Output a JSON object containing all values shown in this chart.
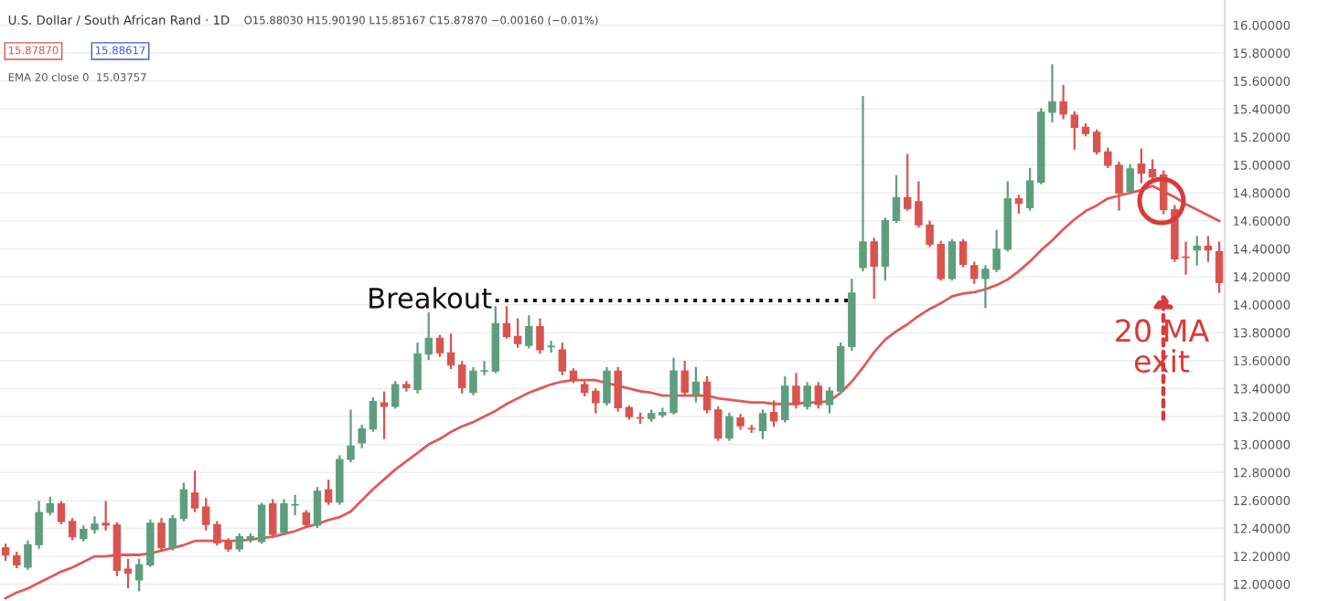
{
  "chart_data": {
    "type": "candlestick",
    "title": "U.S. Dollar / South African Rand · 1D",
    "subtitle": "O15.88030 H15.90190 L15.85167 C15.87870 −0.00160 (−0.01%)",
    "annotations": [
      "15.87870",
      "15.88617",
      "EMA 20 close 0  15.03757",
      "20 MA\nexit"
    ],
    "categories": [
      null,
      null,
      null,
      null,
      null,
      null,
      null,
      null,
      null,
      null,
      null,
      null,
      null,
      null,
      null,
      null,
      null,
      null,
      null,
      null,
      null,
      null,
      null,
      null,
      null,
      null,
      null,
      null,
      null,
      null,
      null,
      null,
      null,
      null,
      null,
      null,
      null,
      null,
      null,
      null,
      null,
      null,
      null,
      null,
      null,
      null,
      null,
      null,
      null,
      null,
      null,
      null,
      null,
      null,
      null,
      null,
      null,
      null,
      null,
      null,
      null,
      null,
      null,
      null,
      null,
      null,
      null,
      null,
      null,
      null,
      null,
      null,
      null,
      null,
      null,
      null,
      null,
      null,
      null,
      null,
      null,
      null,
      null,
      null,
      null,
      null,
      null,
      null,
      null,
      null,
      null,
      null,
      null,
      null,
      null,
      null,
      null,
      null,
      null,
      null,
      null,
      null,
      null,
      null,
      null,
      null,
      null,
      null,
      null,
      null
    ],
    "ylim": [
      11.88,
      16.18
    ],
    "yticks": [
      {
        "value": 12.0,
        "label": "12.00000"
      },
      {
        "value": 12.2,
        "label": "12.20000"
      },
      {
        "value": 12.4,
        "label": "12.40000"
      },
      {
        "value": 12.6,
        "label": "12.60000"
      },
      {
        "value": 12.8,
        "label": "12.80000"
      },
      {
        "value": 13.0,
        "label": "13.00000"
      },
      {
        "value": 13.2,
        "label": "13.20000"
      },
      {
        "value": 13.4,
        "label": "13.40000"
      },
      {
        "value": 13.6,
        "label": "13.60000"
      },
      {
        "value": 13.8,
        "label": "13.80000"
      },
      {
        "value": 14.0,
        "label": "14.00000"
      },
      {
        "value": 14.2,
        "label": "14.20000"
      },
      {
        "value": 14.4,
        "label": "14.40000"
      },
      {
        "value": 14.6,
        "label": "14.60000"
      },
      {
        "value": 14.8,
        "label": "14.80000"
      },
      {
        "value": 15.0,
        "label": "15.00000"
      },
      {
        "value": 15.2,
        "label": "15.20000"
      },
      {
        "value": 15.4,
        "label": "15.40000"
      },
      {
        "value": 15.6,
        "label": "15.60000"
      },
      {
        "value": 15.8,
        "label": "15.80000"
      },
      {
        "value": 16.0,
        "label": "16.00000"
      }
    ],
    "tick_labels": "y",
    "grid": "y",
    "series": [
      {
        "ohlc": [
          [
            12.261,
            12.283,
            12.174,
            12.209
          ],
          [
            12.205,
            12.226,
            12.122,
            12.139
          ],
          [
            12.122,
            12.305,
            12.109,
            12.283
          ],
          [
            12.283,
            12.588,
            12.261,
            12.514
          ],
          [
            12.514,
            12.619,
            12.501,
            12.575
          ],
          [
            12.575,
            12.588,
            12.436,
            12.449
          ],
          [
            12.449,
            12.466,
            12.322,
            12.34
          ],
          [
            12.327,
            12.414,
            12.314,
            12.392
          ],
          [
            12.392,
            12.479,
            12.37,
            12.431
          ],
          [
            12.436,
            12.588,
            12.392,
            12.423
          ],
          [
            12.423,
            12.436,
            12.065,
            12.1
          ],
          [
            12.109,
            12.174,
            11.978,
            12.078
          ],
          [
            12.03,
            12.174,
            11.956,
            12.139
          ],
          [
            12.139,
            12.457,
            12.131,
            12.436
          ],
          [
            12.436,
            12.466,
            12.239,
            12.261
          ],
          [
            12.261,
            12.488,
            12.248,
            12.47
          ],
          [
            12.47,
            12.719,
            12.457,
            12.675
          ],
          [
            12.653,
            12.806,
            12.523,
            12.545
          ],
          [
            12.553,
            12.61,
            12.392,
            12.427
          ],
          [
            12.427,
            12.444,
            12.283,
            12.296
          ],
          [
            12.305,
            12.322,
            12.239,
            12.253
          ],
          [
            12.253,
            12.357,
            12.239,
            12.34
          ],
          [
            12.318,
            12.357,
            12.305,
            12.34
          ],
          [
            12.305,
            12.575,
            12.296,
            12.566
          ],
          [
            12.575,
            12.601,
            12.34,
            12.357
          ],
          [
            12.37,
            12.601,
            12.357,
            12.575
          ],
          [
            12.566,
            12.632,
            12.501,
            12.568
          ],
          [
            12.51,
            12.523,
            12.414,
            12.427
          ],
          [
            12.423,
            12.688,
            12.41,
            12.666
          ],
          [
            12.675,
            12.741,
            12.575,
            12.588
          ],
          [
            12.588,
            12.915,
            12.575,
            12.893
          ],
          [
            12.893,
            13.242,
            12.88,
            12.989
          ],
          [
            13.011,
            13.133,
            12.98,
            13.111
          ],
          [
            13.111,
            13.329,
            13.098,
            13.307
          ],
          [
            13.298,
            13.372,
            13.046,
            13.272
          ],
          [
            13.272,
            13.446,
            13.263,
            13.429
          ],
          [
            13.429,
            13.446,
            13.385,
            13.407
          ],
          [
            13.394,
            13.721,
            13.372,
            13.647
          ],
          [
            13.647,
            13.939,
            13.612,
            13.76
          ],
          [
            13.76,
            13.778,
            13.634,
            13.656
          ],
          [
            13.656,
            13.786,
            13.547,
            13.568
          ],
          [
            13.568,
            13.59,
            13.372,
            13.407
          ],
          [
            13.372,
            13.547,
            13.359,
            13.525
          ],
          [
            13.523,
            13.59,
            13.503,
            13.527
          ],
          [
            13.525,
            13.982,
            13.516,
            13.865
          ],
          [
            13.865,
            13.982,
            13.765,
            13.773
          ],
          [
            13.773,
            13.895,
            13.699,
            13.721
          ],
          [
            13.708,
            13.917,
            13.695,
            13.843
          ],
          [
            13.843,
            13.895,
            13.656,
            13.677
          ],
          [
            13.699,
            13.734,
            13.664,
            13.701
          ],
          [
            13.677,
            13.721,
            13.503,
            13.525
          ],
          [
            13.525,
            13.538,
            13.446,
            13.46
          ],
          [
            13.429,
            13.446,
            13.351,
            13.372
          ],
          [
            13.381,
            13.394,
            13.229,
            13.298
          ],
          [
            13.298,
            13.547,
            13.285,
            13.525
          ],
          [
            13.525,
            13.547,
            13.242,
            13.263
          ],
          [
            13.263,
            13.272,
            13.185,
            13.198
          ],
          [
            13.192,
            13.221,
            13.155,
            13.188
          ],
          [
            13.186,
            13.243,
            13.168,
            13.221
          ],
          [
            13.212,
            13.256,
            13.199,
            13.229
          ],
          [
            13.229,
            13.613,
            13.221,
            13.526
          ],
          [
            13.526,
            13.591,
            13.351,
            13.373
          ],
          [
            13.36,
            13.547,
            13.308,
            13.447
          ],
          [
            13.447,
            13.482,
            13.229,
            13.247
          ],
          [
            13.247,
            13.264,
            13.033,
            13.046
          ],
          [
            13.046,
            13.221,
            13.033,
            13.199
          ],
          [
            13.19,
            13.212,
            13.112,
            13.133
          ],
          [
            13.113,
            13.133,
            13.09,
            13.111
          ],
          [
            13.099,
            13.243,
            13.046,
            13.221
          ],
          [
            13.229,
            13.308,
            13.133,
            13.168
          ],
          [
            13.177,
            13.482,
            13.164,
            13.417
          ],
          [
            13.417,
            13.504,
            13.264,
            13.286
          ],
          [
            13.273,
            13.439,
            13.256,
            13.417
          ],
          [
            13.417,
            13.439,
            13.264,
            13.286
          ],
          [
            13.286,
            13.404,
            13.229,
            13.382
          ],
          [
            13.382,
            13.722,
            13.369,
            13.7
          ],
          [
            13.7,
            14.179,
            13.678,
            14.083
          ],
          [
            14.266,
            15.486,
            14.245,
            14.449
          ],
          [
            14.449,
            14.471,
            14.049,
            14.275
          ],
          [
            14.275,
            14.615,
            14.179,
            14.602
          ],
          [
            14.602,
            14.92,
            14.593,
            14.767
          ],
          [
            14.767,
            15.072,
            14.68,
            14.689
          ],
          [
            14.737,
            14.876,
            14.558,
            14.571
          ],
          [
            14.571,
            14.593,
            14.419,
            14.432
          ],
          [
            14.432,
            14.449,
            14.179,
            14.188
          ],
          [
            14.188,
            14.462,
            14.179,
            14.449
          ],
          [
            14.449,
            14.462,
            14.275,
            14.288
          ],
          [
            14.279,
            14.301,
            14.157,
            14.188
          ],
          [
            14.188,
            14.275,
            13.983,
            14.253
          ],
          [
            14.253,
            14.528,
            14.24,
            14.397
          ],
          [
            14.397,
            14.876,
            14.388,
            14.759
          ],
          [
            14.759,
            14.78,
            14.658,
            14.724
          ],
          [
            14.693,
            14.972,
            14.68,
            14.885
          ],
          [
            14.876,
            15.399,
            14.868,
            15.377
          ],
          [
            15.377,
            15.713,
            15.312,
            15.451
          ],
          [
            15.451,
            15.565,
            15.334,
            15.364
          ],
          [
            15.356,
            15.377,
            15.116,
            15.269
          ],
          [
            15.269,
            15.29,
            15.212,
            15.225
          ],
          [
            15.234,
            15.247,
            15.081,
            15.094
          ],
          [
            15.094,
            15.116,
            14.985,
            14.998
          ],
          [
            14.998,
            15.016,
            14.68,
            14.798
          ],
          [
            14.811,
            14.998,
            14.798,
            14.972
          ],
          [
            15.007,
            15.111,
            14.876,
            14.941
          ],
          [
            14.967,
            15.033,
            14.876,
            14.915
          ],
          [
            14.928,
            14.954,
            14.654,
            14.68
          ],
          [
            14.68,
            14.706,
            14.314,
            14.327
          ],
          [
            14.342,
            14.444,
            14.222,
            14.338
          ],
          [
            14.392,
            14.484,
            14.288,
            14.418
          ],
          [
            14.418,
            14.484,
            14.314,
            14.392
          ],
          [
            14.379,
            14.444,
            14.091,
            14.157
          ]
        ],
        "colors": [
          "#d9534f",
          "#d9534f",
          "#5d9e7e",
          "#5d9e7e",
          "#5d9e7e",
          "#d9534f",
          "#d9534f",
          "#5d9e7e",
          "#5d9e7e",
          "#d9534f",
          "#d9534f",
          "#d9534f",
          "#5d9e7e",
          "#5d9e7e",
          "#d9534f",
          "#5d9e7e",
          "#5d9e7e",
          "#d9534f",
          "#d9534f",
          "#d9534f",
          "#d9534f",
          "#5d9e7e",
          "#5d9e7e",
          "#5d9e7e",
          "#d9534f",
          "#5d9e7e",
          "#5d9e7e",
          "#d9534f",
          "#5d9e7e",
          "#d9534f",
          "#5d9e7e",
          "#5d9e7e",
          "#5d9e7e",
          "#5d9e7e",
          "#d9534f",
          "#5d9e7e",
          "#d9534f",
          "#5d9e7e",
          "#5d9e7e",
          "#d9534f",
          "#d9534f",
          "#d9534f",
          "#5d9e7e",
          "#5d9e7e",
          "#5d9e7e",
          "#d9534f",
          "#d9534f",
          "#5d9e7e",
          "#d9534f",
          "#5d9e7e",
          "#d9534f",
          "#d9534f",
          "#d9534f",
          "#d9534f",
          "#5d9e7e",
          "#d9534f",
          "#d9534f",
          "#d9534f",
          "#5d9e7e",
          "#5d9e7e",
          "#5d9e7e",
          "#d9534f",
          "#5d9e7e",
          "#d9534f",
          "#d9534f",
          "#5d9e7e",
          "#d9534f",
          "#d9534f",
          "#5d9e7e",
          "#d9534f",
          "#5d9e7e",
          "#d9534f",
          "#5d9e7e",
          "#d9534f",
          "#5d9e7e",
          "#5d9e7e",
          "#5d9e7e",
          "#5d9e7e",
          "#d9534f",
          "#5d9e7e",
          "#5d9e7e",
          "#d9534f",
          "#d9534f",
          "#d9534f",
          "#d9534f",
          "#5d9e7e",
          "#d9534f",
          "#d9534f",
          "#5d9e7e",
          "#5d9e7e",
          "#5d9e7e",
          "#d9534f",
          "#5d9e7e",
          "#5d9e7e",
          "#5d9e7e",
          "#d9534f",
          "#d9534f",
          "#d9534f",
          "#d9534f",
          "#d9534f",
          "#d9534f",
          "#5d9e7e",
          "#d9534f",
          "#d9534f",
          "#d9534f",
          "#d9534f",
          "#d9534f",
          "#5d9e7e",
          "#d9534f",
          "#d9534f"
        ]
      },
      {
        "type": "line",
        "color": "#e05a5a",
        "line_style": "solid",
        "values": [
          11.9,
          11.94,
          11.97,
          12.01,
          12.05,
          12.09,
          12.12,
          12.16,
          12.2,
          12.2,
          12.21,
          12.21,
          12.21,
          12.22,
          12.24,
          12.26,
          12.28,
          12.31,
          12.31,
          12.31,
          12.31,
          12.31,
          12.32,
          12.33,
          12.34,
          12.36,
          12.38,
          12.41,
          12.43,
          12.46,
          12.48,
          12.52,
          12.6,
          12.68,
          12.75,
          12.82,
          12.88,
          12.94,
          13.0,
          13.04,
          13.09,
          13.13,
          13.16,
          13.2,
          13.24,
          13.29,
          13.33,
          13.37,
          13.4,
          13.43,
          13.45,
          13.46,
          13.46,
          13.46,
          13.44,
          13.42,
          13.4,
          13.38,
          13.37,
          13.35,
          13.35,
          13.35,
          13.35,
          13.35,
          13.33,
          13.32,
          13.31,
          13.3,
          13.3,
          13.29,
          13.29,
          13.29,
          13.3,
          13.3,
          13.31,
          13.37,
          13.45,
          13.55,
          13.66,
          13.75,
          13.81,
          13.86,
          13.92,
          13.97,
          14.01,
          14.06,
          14.08,
          14.09,
          14.11,
          14.14,
          14.18,
          14.24,
          14.31,
          14.39,
          14.46,
          14.54,
          14.61,
          14.67,
          14.71,
          14.76,
          14.78,
          14.8,
          14.82,
          14.85,
          14.81,
          14.77,
          14.72,
          14.68,
          14.64,
          14.6
        ]
      },
      {
        "type": "line",
        "name": "Breakout",
        "color": "#111111",
        "line_style": "dotted",
        "values": [
          null,
          null,
          null,
          null,
          null,
          null,
          null,
          null,
          null,
          null,
          null,
          null,
          null,
          null,
          null,
          null,
          null,
          null,
          null,
          null,
          null,
          null,
          null,
          null,
          null,
          null,
          null,
          null,
          null,
          null,
          null,
          null,
          null,
          null,
          null,
          null,
          null,
          null,
          null,
          null,
          null,
          null,
          null,
          null,
          14.03,
          14.03,
          14.03,
          14.03,
          14.03,
          14.03,
          14.03,
          14.03,
          14.03,
          14.03,
          14.03,
          14.03,
          14.03,
          14.03,
          14.03,
          14.03,
          14.03,
          14.03,
          14.03,
          14.03,
          14.03,
          14.03,
          14.03,
          14.03,
          14.03,
          14.03,
          14.03,
          14.03,
          14.03,
          14.03,
          14.03,
          14.03,
          14.03,
          null,
          null,
          null,
          null,
          null,
          null,
          null,
          null,
          null,
          null,
          null,
          null,
          null,
          null,
          null,
          null,
          null,
          null,
          null,
          null,
          null,
          null,
          null,
          null,
          null,
          null,
          null,
          null,
          null,
          null,
          null,
          null,
          null
        ]
      }
    ]
  }
}
